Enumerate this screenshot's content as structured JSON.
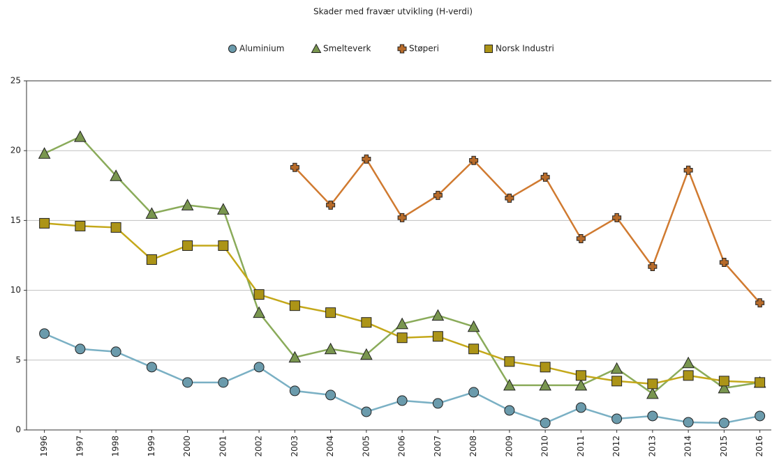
{
  "chart_data": {
    "type": "line",
    "title": "Skader med fravær utvikling (H-verdi)",
    "categories": [
      "1996",
      "1997",
      "1998",
      "1999",
      "2000",
      "2001",
      "2002",
      "2003",
      "2004",
      "2005",
      "2006",
      "2007",
      "2008",
      "2009",
      "2010",
      "2011",
      "2012",
      "2013",
      "2014",
      "2015",
      "2016"
    ],
    "series": [
      {
        "name": "Aluminium",
        "color": "#7ab0c4",
        "marker": "circle",
        "values": [
          6.9,
          5.8,
          5.6,
          4.5,
          3.4,
          3.4,
          4.5,
          2.8,
          2.5,
          1.3,
          2.1,
          1.9,
          2.7,
          1.4,
          0.5,
          1.6,
          0.8,
          1.0,
          0.55,
          0.5,
          1.0
        ]
      },
      {
        "name": "Smelteverk",
        "color": "#8aab5a",
        "marker": "triangle",
        "values": [
          19.8,
          21.0,
          18.2,
          15.5,
          16.1,
          15.8,
          8.4,
          5.2,
          5.8,
          5.4,
          7.6,
          8.2,
          7.4,
          3.2,
          3.2,
          3.2,
          4.4,
          2.6,
          4.8,
          3.0,
          3.4
        ]
      },
      {
        "name": "Støperi",
        "color": "#d07a30",
        "marker": "cross",
        "values": [
          null,
          null,
          null,
          null,
          null,
          null,
          null,
          18.8,
          16.1,
          19.4,
          15.2,
          16.8,
          19.3,
          16.6,
          18.1,
          13.7,
          15.2,
          11.7,
          18.6,
          12.0,
          9.1
        ]
      },
      {
        "name": "Norsk Industri",
        "color": "#c4a81a",
        "marker": "square",
        "values": [
          14.8,
          14.6,
          14.5,
          12.2,
          13.2,
          13.2,
          9.7,
          8.9,
          8.4,
          7.7,
          6.6,
          6.7,
          5.8,
          4.9,
          4.5,
          3.9,
          3.5,
          3.3,
          3.9,
          3.5,
          3.4
        ]
      }
    ],
    "ylim": [
      0,
      25
    ],
    "yticks": [
      0,
      5,
      10,
      15,
      20,
      25
    ],
    "grid": true,
    "legend": "top"
  }
}
